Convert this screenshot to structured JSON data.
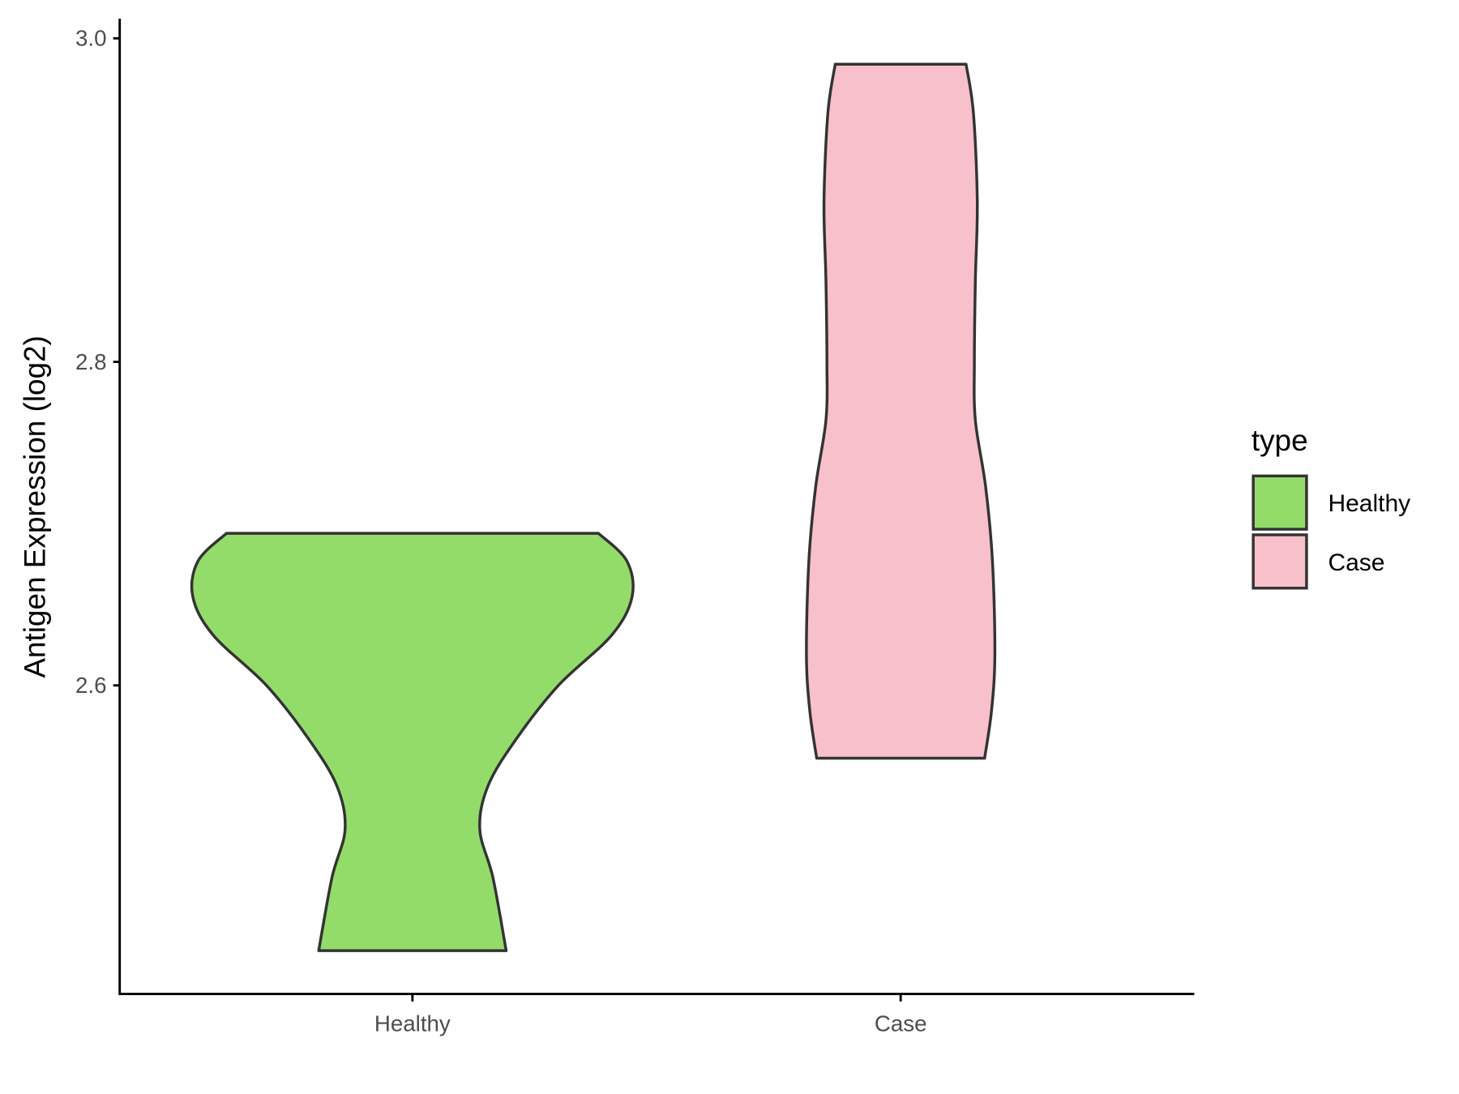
{
  "chart_data": {
    "type": "violin",
    "title": "",
    "xlabel": "",
    "ylabel": "Antigen Expression (log2)",
    "categories": [
      "Healthy",
      "Case"
    ],
    "ylim": [
      2.409,
      3.012
    ],
    "yticks": [
      "2.6",
      "2.8",
      "3.0"
    ],
    "ytick_values": [
      2.6,
      2.8,
      3.0
    ],
    "grid": false,
    "legend": {
      "title": "type",
      "position": "right",
      "entries": [
        "Healthy",
        "Case"
      ]
    },
    "series": [
      {
        "name": "Healthy",
        "color": "#93dc6a",
        "min": 2.436,
        "max": 2.694,
        "profile": [
          [
            2.694,
            0.381
          ],
          [
            2.677,
            0.439
          ],
          [
            2.655,
            0.45
          ],
          [
            2.631,
            0.408
          ],
          [
            2.6,
            0.299
          ],
          [
            2.567,
            0.213
          ],
          [
            2.538,
            0.155
          ],
          [
            2.511,
            0.138
          ],
          [
            2.481,
            0.165
          ],
          [
            2.436,
            0.192
          ]
        ]
      },
      {
        "name": "Case",
        "color": "#f7c0cb",
        "min": 2.555,
        "max": 2.984,
        "profile": [
          [
            2.984,
            0.134
          ],
          [
            2.954,
            0.149
          ],
          [
            2.899,
            0.157
          ],
          [
            2.85,
            0.153
          ],
          [
            2.8,
            0.151
          ],
          [
            2.764,
            0.153
          ],
          [
            2.723,
            0.174
          ],
          [
            2.677,
            0.188
          ],
          [
            2.619,
            0.193
          ],
          [
            2.584,
            0.186
          ],
          [
            2.555,
            0.172
          ]
        ]
      }
    ],
    "outline_color": "#333333"
  }
}
